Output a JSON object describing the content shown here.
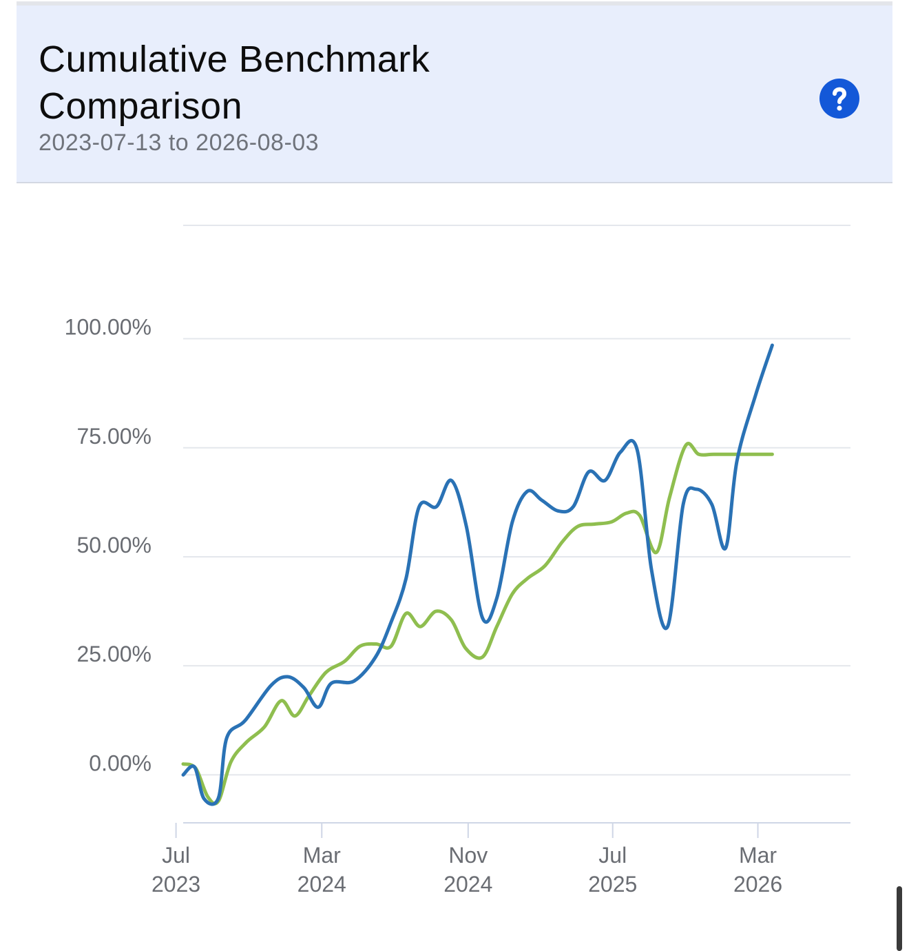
{
  "header": {
    "title": "Cumulative Benchmark Comparison",
    "date_range": "2023-07-13 to 2026-08-03",
    "help_icon": "question-mark-icon",
    "background_color": "#e8eefc",
    "help_color": "#1358d8"
  },
  "chart_data": {
    "type": "line",
    "title": "Cumulative Benchmark Comparison",
    "subtitle": "2023-07-13 to 2026-08-03",
    "xlabel": "",
    "ylabel": "",
    "x_range": [
      "2023-07-13",
      "2026-08-03"
    ],
    "ylim": [
      -11,
      126
    ],
    "y_ticks": [
      0,
      25,
      50,
      75,
      100
    ],
    "y_tick_labels": [
      "0.00%",
      "25.00%",
      "50.00%",
      "75.00%",
      "100.00%"
    ],
    "x_ticks": [
      {
        "date": "2023-07-01",
        "month": "Jul",
        "year": "2023"
      },
      {
        "date": "2024-03-01",
        "month": "Mar",
        "year": "2024"
      },
      {
        "date": "2024-11-01",
        "month": "Nov",
        "year": "2024"
      },
      {
        "date": "2025-07-01",
        "month": "Jul",
        "year": "2025"
      },
      {
        "date": "2026-03-01",
        "month": "Mar",
        "year": "2026"
      }
    ],
    "grid": true,
    "legend": "none",
    "series": [
      {
        "color": "#2a72b5",
        "points": [
          [
            "2023-07-13",
            0
          ],
          [
            "2023-08-01",
            1.8
          ],
          [
            "2023-08-17",
            -5.5
          ],
          [
            "2023-09-10",
            -5.3
          ],
          [
            "2023-09-24",
            8.5
          ],
          [
            "2023-10-25",
            12.5
          ],
          [
            "2023-12-07",
            20.5
          ],
          [
            "2024-01-04",
            22.5
          ],
          [
            "2024-01-31",
            20
          ],
          [
            "2024-02-24",
            15.5
          ],
          [
            "2024-03-17",
            21
          ],
          [
            "2024-04-24",
            21.5
          ],
          [
            "2024-05-30",
            27
          ],
          [
            "2024-06-25",
            35
          ],
          [
            "2024-07-20",
            45
          ],
          [
            "2024-08-11",
            61.5
          ],
          [
            "2024-09-09",
            61.5
          ],
          [
            "2024-10-04",
            67.5
          ],
          [
            "2024-10-29",
            57
          ],
          [
            "2024-11-25",
            36
          ],
          [
            "2024-12-19",
            40.5
          ],
          [
            "2025-01-14",
            58
          ],
          [
            "2025-02-08",
            65
          ],
          [
            "2025-03-04",
            63
          ],
          [
            "2025-04-01",
            60.5
          ],
          [
            "2025-04-26",
            61.5
          ],
          [
            "2025-05-22",
            69.5
          ],
          [
            "2025-06-18",
            67.5
          ],
          [
            "2025-07-14",
            74
          ],
          [
            "2025-08-11",
            74.5
          ],
          [
            "2025-09-04",
            47
          ],
          [
            "2025-10-01",
            34
          ],
          [
            "2025-10-27",
            62
          ],
          [
            "2025-11-18",
            65.5
          ],
          [
            "2025-12-14",
            62
          ],
          [
            "2026-01-06",
            52
          ],
          [
            "2026-01-25",
            72
          ],
          [
            "2026-02-25",
            87
          ],
          [
            "2026-03-25",
            98.5
          ]
        ]
      },
      {
        "color": "#8fbe4f",
        "points": [
          [
            "2023-07-13",
            2.5
          ],
          [
            "2023-08-03",
            1.5
          ],
          [
            "2023-08-23",
            -5
          ],
          [
            "2023-09-10",
            -6
          ],
          [
            "2023-10-01",
            3
          ],
          [
            "2023-10-27",
            7.5
          ],
          [
            "2023-11-26",
            11
          ],
          [
            "2023-12-24",
            17
          ],
          [
            "2024-01-16",
            13.5
          ],
          [
            "2024-02-08",
            18
          ],
          [
            "2024-03-08",
            23.5
          ],
          [
            "2024-04-08",
            26
          ],
          [
            "2024-05-04",
            29.5
          ],
          [
            "2024-05-31",
            30
          ],
          [
            "2024-06-25",
            29.5
          ],
          [
            "2024-07-20",
            37
          ],
          [
            "2024-08-13",
            34
          ],
          [
            "2024-09-08",
            37.5
          ],
          [
            "2024-10-04",
            35.5
          ],
          [
            "2024-10-28",
            29
          ],
          [
            "2024-11-25",
            27
          ],
          [
            "2024-12-19",
            34
          ],
          [
            "2025-01-14",
            41.5
          ],
          [
            "2025-02-08",
            45
          ],
          [
            "2025-03-10",
            48
          ],
          [
            "2025-04-08",
            53.5
          ],
          [
            "2025-05-04",
            57
          ],
          [
            "2025-06-01",
            57.5
          ],
          [
            "2025-06-29",
            58
          ],
          [
            "2025-07-24",
            60
          ],
          [
            "2025-08-15",
            59.5
          ],
          [
            "2025-09-12",
            51
          ],
          [
            "2025-10-04",
            63.5
          ],
          [
            "2025-10-31",
            75.5
          ],
          [
            "2025-11-22",
            73.5
          ],
          [
            "2025-12-17",
            73.5
          ],
          [
            "2026-01-23",
            73.5
          ],
          [
            "2026-03-25",
            73.5
          ]
        ]
      }
    ]
  }
}
